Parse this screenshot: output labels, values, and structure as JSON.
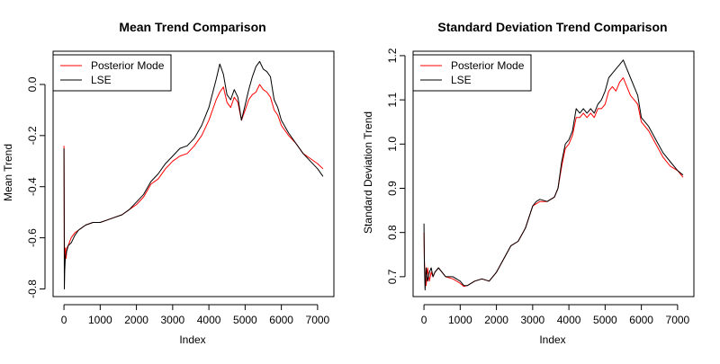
{
  "chart_data": [
    {
      "type": "line",
      "title": "Mean Trend Comparison",
      "xlabel": "Index",
      "ylabel": "Mean Trend",
      "xlim": [
        -300,
        7450
      ],
      "ylim": [
        -0.83,
        0.13
      ],
      "xticks": [
        0,
        1000,
        2000,
        3000,
        4000,
        5000,
        6000,
        7000
      ],
      "xtick_labels": [
        "0",
        "1000",
        "2000",
        "3000",
        "4000",
        "5000",
        "6000",
        "7000"
      ],
      "yticks": [
        -0.8,
        -0.6,
        -0.4,
        -0.2,
        0.0
      ],
      "ytick_labels": [
        "-0.8",
        "-0.6",
        "-0.4",
        "-0.2",
        "0.0"
      ],
      "legend_position": "top-left",
      "grid": false,
      "series": [
        {
          "name": "Posterior Mode",
          "color": "#ff0000",
          "x": [
            0,
            10,
            20,
            30,
            40,
            60,
            80,
            120,
            200,
            300,
            400,
            600,
            800,
            1000,
            1200,
            1400,
            1600,
            1800,
            2000,
            2200,
            2400,
            2600,
            2800,
            3000,
            3200,
            3400,
            3600,
            3800,
            4000,
            4200,
            4300,
            4400,
            4500,
            4600,
            4700,
            4800,
            4900,
            5000,
            5100,
            5200,
            5300,
            5400,
            5500,
            5600,
            5700,
            5800,
            5900,
            6000,
            6200,
            6400,
            6600,
            6800,
            7000,
            7150
          ],
          "y": [
            -0.24,
            -0.6,
            -0.7,
            -0.66,
            -0.64,
            -0.68,
            -0.64,
            -0.63,
            -0.6,
            -0.58,
            -0.57,
            -0.55,
            -0.54,
            -0.54,
            -0.53,
            -0.52,
            -0.51,
            -0.49,
            -0.47,
            -0.44,
            -0.39,
            -0.37,
            -0.33,
            -0.3,
            -0.28,
            -0.27,
            -0.24,
            -0.2,
            -0.14,
            -0.06,
            -0.03,
            -0.01,
            -0.07,
            -0.09,
            -0.05,
            -0.07,
            -0.14,
            -0.1,
            -0.06,
            -0.04,
            -0.03,
            0.0,
            -0.02,
            -0.03,
            -0.05,
            -0.1,
            -0.12,
            -0.16,
            -0.2,
            -0.23,
            -0.27,
            -0.29,
            -0.31,
            -0.33
          ]
        },
        {
          "name": "LSE",
          "color": "#000000",
          "x": [
            0,
            10,
            20,
            30,
            40,
            60,
            80,
            120,
            200,
            300,
            400,
            600,
            800,
            1000,
            1200,
            1400,
            1600,
            1800,
            2000,
            2200,
            2400,
            2600,
            2800,
            3000,
            3200,
            3400,
            3600,
            3800,
            4000,
            4200,
            4300,
            4400,
            4500,
            4600,
            4700,
            4800,
            4900,
            5000,
            5100,
            5200,
            5300,
            5400,
            5500,
            5600,
            5700,
            5800,
            5900,
            6000,
            6200,
            6400,
            6600,
            6800,
            7000,
            7150
          ],
          "y": [
            -0.25,
            -0.8,
            -0.73,
            -0.7,
            -0.67,
            -0.66,
            -0.65,
            -0.63,
            -0.62,
            -0.59,
            -0.57,
            -0.55,
            -0.54,
            -0.54,
            -0.53,
            -0.52,
            -0.51,
            -0.49,
            -0.46,
            -0.43,
            -0.38,
            -0.35,
            -0.31,
            -0.28,
            -0.25,
            -0.24,
            -0.21,
            -0.16,
            -0.09,
            0.02,
            0.08,
            0.04,
            -0.04,
            -0.06,
            -0.02,
            -0.05,
            -0.14,
            -0.08,
            -0.02,
            0.03,
            0.07,
            0.09,
            0.06,
            0.05,
            0.03,
            -0.06,
            -0.09,
            -0.14,
            -0.19,
            -0.23,
            -0.27,
            -0.3,
            -0.33,
            -0.36
          ]
        }
      ]
    },
    {
      "type": "line",
      "title": "Standard Deviation Trend Comparison",
      "xlabel": "Index",
      "ylabel": "Standard Deviation Trend",
      "xlim": [
        -300,
        7450
      ],
      "ylim": [
        0.655,
        1.21
      ],
      "xticks": [
        0,
        1000,
        2000,
        3000,
        4000,
        5000,
        6000,
        7000
      ],
      "xtick_labels": [
        "0",
        "1000",
        "2000",
        "3000",
        "4000",
        "5000",
        "6000",
        "7000"
      ],
      "yticks": [
        0.7,
        0.8,
        0.9,
        1.0,
        1.1,
        1.2
      ],
      "ytick_labels": [
        "0.7",
        "0.8",
        "0.9",
        "1.0",
        "1.1",
        "1.2"
      ],
      "legend_position": "top-left",
      "grid": false,
      "series": [
        {
          "name": "Posterior Mode",
          "color": "#ff0000",
          "x": [
            0,
            10,
            30,
            60,
            100,
            150,
            200,
            250,
            300,
            400,
            500,
            600,
            800,
            1000,
            1100,
            1200,
            1400,
            1600,
            1800,
            2000,
            2200,
            2400,
            2600,
            2800,
            3000,
            3100,
            3200,
            3400,
            3600,
            3700,
            3800,
            3900,
            4000,
            4100,
            4200,
            4300,
            4400,
            4500,
            4600,
            4700,
            4800,
            4900,
            5000,
            5100,
            5200,
            5300,
            5400,
            5500,
            5600,
            5700,
            5800,
            5900,
            6000,
            6200,
            6400,
            6600,
            6800,
            7000,
            7150
          ],
          "y": [
            0.8,
            0.74,
            0.7,
            0.68,
            0.72,
            0.69,
            0.71,
            0.7,
            0.71,
            0.72,
            0.71,
            0.7,
            0.695,
            0.685,
            0.678,
            0.68,
            0.69,
            0.695,
            0.69,
            0.71,
            0.74,
            0.77,
            0.78,
            0.81,
            0.86,
            0.865,
            0.87,
            0.87,
            0.88,
            0.9,
            0.95,
            0.99,
            1.0,
            1.02,
            1.06,
            1.06,
            1.07,
            1.06,
            1.07,
            1.06,
            1.08,
            1.08,
            1.09,
            1.12,
            1.13,
            1.12,
            1.14,
            1.15,
            1.13,
            1.11,
            1.1,
            1.09,
            1.05,
            1.03,
            1.0,
            0.97,
            0.95,
            0.94,
            0.925
          ]
        },
        {
          "name": "LSE",
          "color": "#000000",
          "x": [
            0,
            10,
            30,
            60,
            100,
            150,
            200,
            250,
            300,
            400,
            500,
            600,
            800,
            1000,
            1100,
            1200,
            1400,
            1600,
            1800,
            2000,
            2200,
            2400,
            2600,
            2800,
            3000,
            3100,
            3200,
            3400,
            3600,
            3700,
            3800,
            3900,
            4000,
            4100,
            4200,
            4300,
            4400,
            4500,
            4600,
            4700,
            4800,
            4900,
            5000,
            5100,
            5200,
            5300,
            5400,
            5500,
            5600,
            5700,
            5800,
            5900,
            6000,
            6200,
            6400,
            6600,
            6800,
            7000,
            7150
          ],
          "y": [
            0.82,
            0.73,
            0.67,
            0.72,
            0.69,
            0.71,
            0.72,
            0.7,
            0.71,
            0.72,
            0.71,
            0.7,
            0.7,
            0.69,
            0.68,
            0.68,
            0.69,
            0.695,
            0.69,
            0.71,
            0.74,
            0.77,
            0.78,
            0.81,
            0.86,
            0.87,
            0.875,
            0.87,
            0.88,
            0.9,
            0.96,
            1.0,
            1.01,
            1.03,
            1.08,
            1.07,
            1.08,
            1.07,
            1.08,
            1.07,
            1.09,
            1.1,
            1.12,
            1.15,
            1.16,
            1.17,
            1.18,
            1.19,
            1.17,
            1.15,
            1.13,
            1.11,
            1.06,
            1.04,
            1.01,
            0.98,
            0.96,
            0.94,
            0.93
          ]
        }
      ]
    }
  ]
}
